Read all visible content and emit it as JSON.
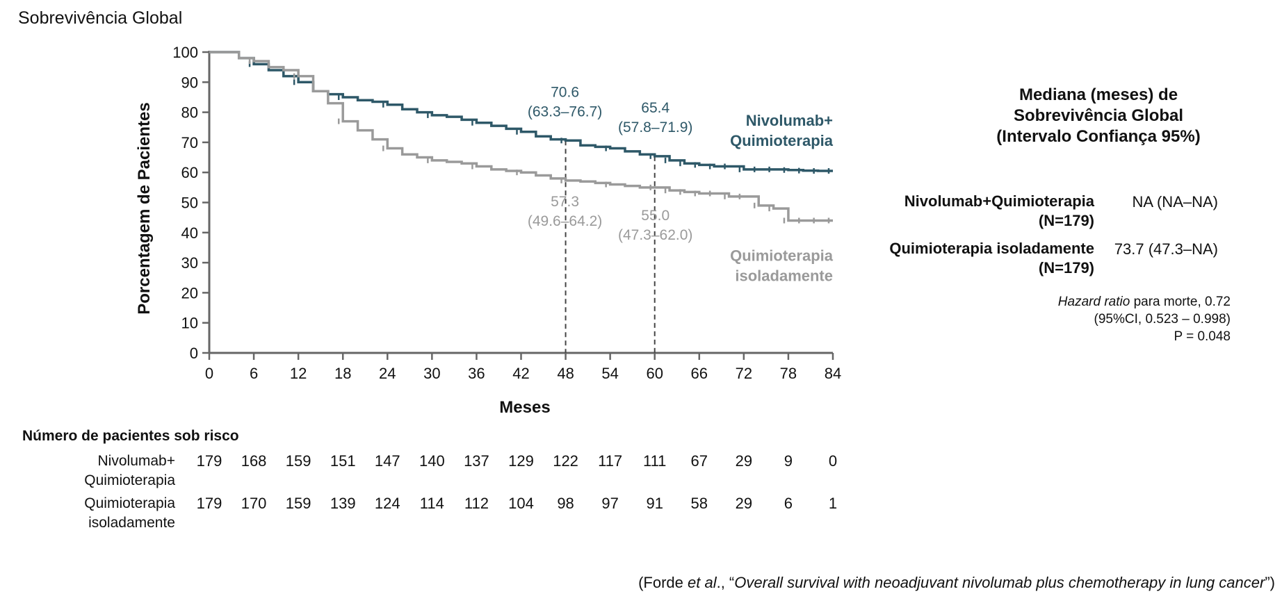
{
  "title": "Sobrevivência Global",
  "chart_data": {
    "type": "line",
    "ylabel": "Porcentagem de Pacientes",
    "xlabel": "Meses",
    "x_ticks": [
      0,
      6,
      12,
      18,
      24,
      30,
      36,
      42,
      48,
      54,
      60,
      66,
      72,
      78,
      84
    ],
    "y_ticks": [
      0,
      10,
      20,
      30,
      40,
      50,
      60,
      70,
      80,
      90,
      100
    ],
    "xlim": [
      0,
      84
    ],
    "ylim": [
      0,
      100
    ],
    "grid": false,
    "series": [
      {
        "name": "Nivolumab+ Quimioterapia",
        "label_lines": [
          "Nivolumab+",
          "Quimioterapia"
        ],
        "color": "#2e5868",
        "x": [
          0,
          3,
          4,
          6,
          8,
          10,
          12,
          14,
          16,
          18,
          20,
          22,
          24,
          26,
          28,
          30,
          32,
          34,
          36,
          38,
          40,
          42,
          44,
          46,
          48,
          50,
          52,
          54,
          56,
          58,
          60,
          62,
          64,
          66,
          68,
          70,
          72,
          74,
          76,
          78,
          80,
          82,
          84
        ],
        "y": [
          100,
          100,
          98,
          96,
          94,
          92,
          90,
          87,
          86,
          85,
          84,
          83.5,
          82.5,
          81,
          80,
          79,
          78.5,
          77.5,
          76.5,
          75.5,
          74.5,
          73.5,
          72,
          71,
          70.6,
          69,
          68.5,
          68,
          67,
          66,
          65.4,
          64,
          63,
          62.5,
          62,
          62,
          61,
          61,
          61,
          60.8,
          60.6,
          60.5,
          60.5
        ]
      },
      {
        "name": "Quimioterapia isoladamente",
        "label_lines": [
          "Quimioterapia",
          "isoladamente"
        ],
        "color": "#9a9a9a",
        "x": [
          0,
          3,
          4,
          6,
          8,
          10,
          12,
          14,
          16,
          18,
          20,
          22,
          24,
          26,
          28,
          30,
          32,
          34,
          36,
          38,
          40,
          42,
          44,
          46,
          48,
          50,
          52,
          54,
          56,
          58,
          60,
          62,
          64,
          66,
          68,
          70,
          72,
          74,
          76,
          78,
          80,
          82,
          84
        ],
        "y": [
          100,
          100,
          98,
          97,
          95,
          94,
          92,
          87,
          83,
          77,
          74,
          71,
          68,
          66,
          65,
          64,
          63.5,
          63,
          62,
          61,
          60.5,
          60,
          59,
          58,
          57.3,
          57,
          56.5,
          56,
          55.5,
          55,
          55,
          54,
          53.5,
          53,
          53,
          52,
          52,
          49,
          48,
          44,
          44,
          44,
          44
        ]
      }
    ],
    "annotations": [
      {
        "series": 0,
        "x": 48,
        "lines": [
          "70.6",
          "(63.3–76.7)"
        ]
      },
      {
        "series": 0,
        "x": 60,
        "lines": [
          "65.4",
          "(57.8–71.9)"
        ]
      },
      {
        "series": 1,
        "x": 48,
        "lines": [
          "57.3",
          "(49.6–64.2)"
        ]
      },
      {
        "series": 1,
        "x": 60,
        "lines": [
          "55.0",
          "(47.3–62.0)"
        ]
      }
    ],
    "reference_lines_x": [
      48,
      60
    ]
  },
  "median_panel": {
    "title_lines": [
      "Mediana (meses) de",
      "Sobrevivência Global",
      "(Intervalo Confiança 95%)"
    ],
    "rows": [
      {
        "name_lines": [
          "Nivolumab+Quimioterapia",
          "(N=179)"
        ],
        "value": "NA (NA–NA)"
      },
      {
        "name_lines": [
          "Quimioterapia isoladamente",
          "(N=179)"
        ],
        "value": "73.7 (47.3–NA)"
      }
    ],
    "hazard_italic": "Hazard ratio",
    "hazard_rest": " para morte, 0.72",
    "ci_text": "(95%CI, 0.523 – 0.998)",
    "p_text": "P = 0.048"
  },
  "risk_table": {
    "title": "Número de pacientes sob risco",
    "rows": [
      {
        "label_lines": [
          "Nivolumab+",
          "Quimioterapia"
        ],
        "values": [
          "179",
          "168",
          "159",
          "151",
          "147",
          "140",
          "137",
          "129",
          "122",
          "117",
          "111",
          "67",
          "29",
          "9",
          "0"
        ]
      },
      {
        "label_lines": [
          "Quimioterapia",
          "isoladamente"
        ],
        "values": [
          "179",
          "170",
          "159",
          "139",
          "124",
          "114",
          "112",
          "104",
          "98",
          "97",
          "91",
          "58",
          "29",
          "6",
          "1"
        ]
      }
    ]
  },
  "citation": {
    "prefix": "(Forde ",
    "etal": "et al",
    "middle": "., “",
    "title": "Overall survival with neoadjuvant nivolumab plus chemotherapy in lung cancer",
    "suffix": "”)"
  }
}
